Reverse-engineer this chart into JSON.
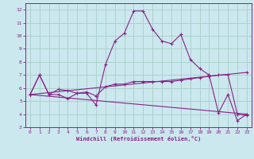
{
  "xlabel": "Windchill (Refroidissement éolien,°C)",
  "bg_color": "#cbe8ee",
  "grid_color": "#a8cec8",
  "line_color": "#882288",
  "xlim": [
    -0.5,
    23.5
  ],
  "ylim": [
    3,
    12.5
  ],
  "xticks": [
    0,
    1,
    2,
    3,
    4,
    5,
    6,
    7,
    8,
    9,
    10,
    11,
    12,
    13,
    14,
    15,
    16,
    17,
    18,
    19,
    20,
    21,
    22,
    23
  ],
  "yticks": [
    3,
    4,
    5,
    6,
    7,
    8,
    9,
    10,
    11,
    12
  ],
  "series1_x": [
    0,
    1,
    2,
    3,
    4,
    5,
    6,
    7,
    8,
    9,
    10,
    11,
    12,
    13,
    14,
    15,
    16,
    17,
    18,
    19,
    20,
    21,
    22,
    23
  ],
  "series1_y": [
    5.5,
    7.0,
    5.5,
    5.5,
    5.2,
    5.6,
    5.6,
    4.7,
    7.8,
    9.6,
    10.2,
    11.9,
    11.9,
    10.5,
    9.6,
    9.4,
    10.1,
    8.2,
    7.5,
    7.0,
    4.1,
    5.5,
    3.5,
    4.0
  ],
  "series2_x": [
    0,
    1,
    2,
    3,
    4,
    5,
    6,
    7,
    8,
    9,
    10,
    11,
    12,
    13,
    14,
    15,
    16,
    17,
    18,
    19,
    20,
    21,
    22,
    23
  ],
  "series2_y": [
    5.5,
    7.0,
    5.5,
    5.9,
    5.8,
    5.6,
    5.7,
    5.4,
    6.1,
    6.3,
    6.3,
    6.5,
    6.5,
    6.5,
    6.5,
    6.5,
    6.6,
    6.7,
    6.8,
    6.9,
    7.0,
    7.0,
    4.0,
    3.9
  ],
  "series3_x": [
    0,
    23
  ],
  "series3_y": [
    5.5,
    7.2
  ],
  "series4_x": [
    0,
    23
  ],
  "series4_y": [
    5.5,
    4.0
  ]
}
